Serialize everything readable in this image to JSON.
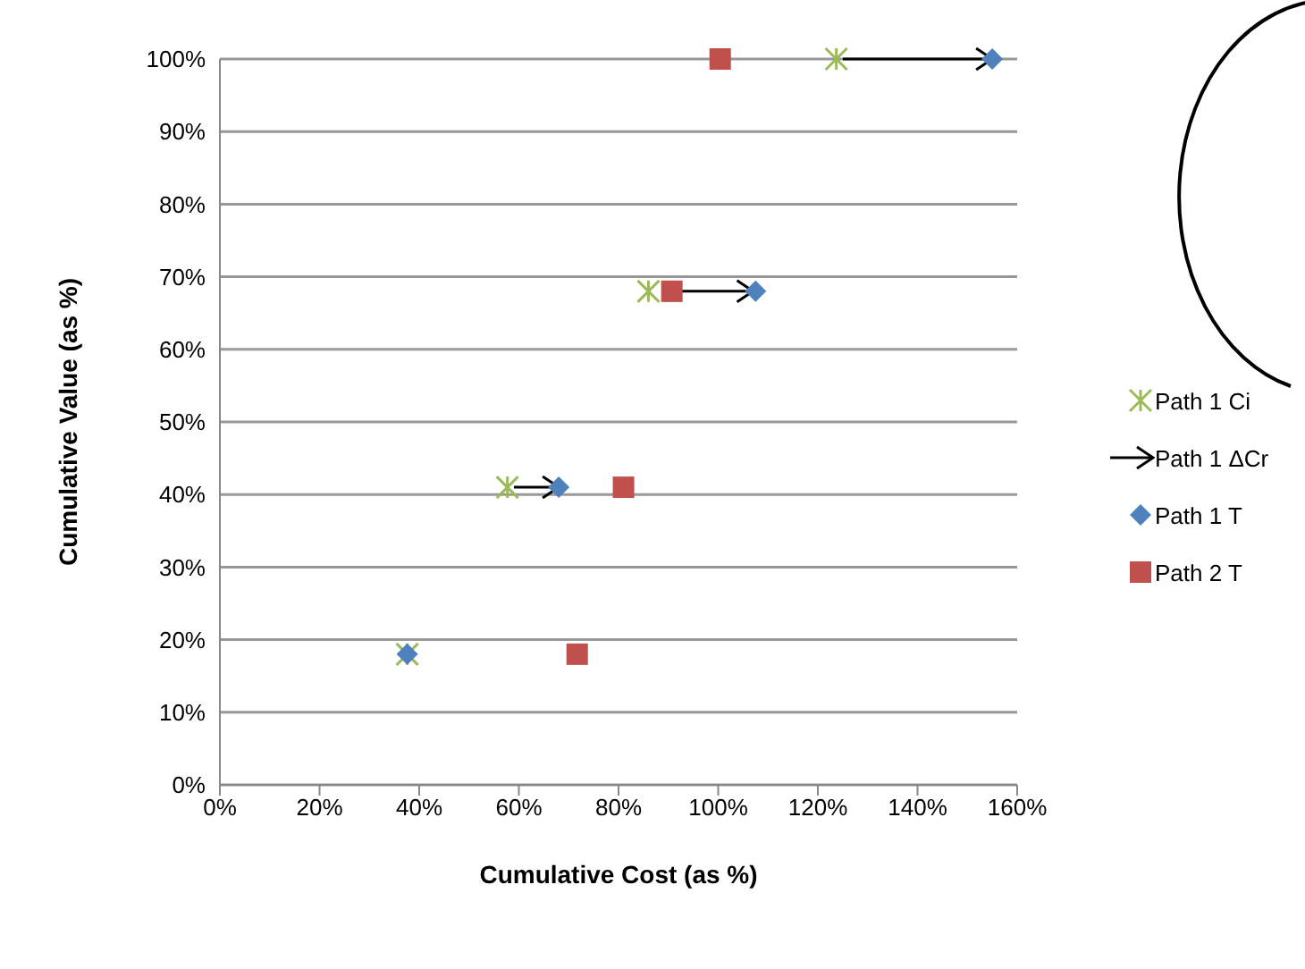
{
  "chart_data": {
    "type": "scatter",
    "xlabel": "Cumulative Cost (as %)",
    "ylabel": "Cumulative Value (as %)",
    "xlim": [
      0,
      160
    ],
    "ylim": [
      0,
      100
    ],
    "xticks": [
      {
        "value": 0,
        "label": "0%"
      },
      {
        "value": 20,
        "label": "20%"
      },
      {
        "value": 40,
        "label": "40%"
      },
      {
        "value": 60,
        "label": "60%"
      },
      {
        "value": 80,
        "label": "80%"
      },
      {
        "value": 100,
        "label": "100%"
      },
      {
        "value": 120,
        "label": "120%"
      },
      {
        "value": 140,
        "label": "140%"
      },
      {
        "value": 160,
        "label": "160%"
      }
    ],
    "yticks": [
      {
        "value": 0,
        "label": "0%"
      },
      {
        "value": 10,
        "label": "10%"
      },
      {
        "value": 20,
        "label": "20%"
      },
      {
        "value": 30,
        "label": "30%"
      },
      {
        "value": 40,
        "label": "40%"
      },
      {
        "value": 50,
        "label": "50%"
      },
      {
        "value": 60,
        "label": "60%"
      },
      {
        "value": 70,
        "label": "70%"
      },
      {
        "value": 80,
        "label": "80%"
      },
      {
        "value": 90,
        "label": "90%"
      },
      {
        "value": 100,
        "label": "100%"
      }
    ],
    "grid": "y",
    "legend": "right",
    "series": [
      {
        "name": "Path 1 Ci",
        "color": "#9bbb59",
        "marker": "cross",
        "x": [
          37.6,
          57.7,
          86,
          123.7
        ],
        "values": [
          18,
          41,
          68,
          100
        ]
      },
      {
        "name": "Path 1 ΔCr",
        "type": "line",
        "color": "#000000",
        "marker": "none",
        "x": [
          59,
          68,
          null,
          89,
          107,
          null,
          125,
          155
        ],
        "values": [
          41,
          41,
          null,
          68,
          68,
          null,
          100,
          100
        ]
      },
      {
        "name": "Path 1 T",
        "color": "#4f81bd",
        "marker": "diamond",
        "x": [
          37.6,
          68,
          107.5,
          155
        ],
        "values": [
          18,
          41,
          68,
          100
        ]
      },
      {
        "name": "Path 2 T",
        "color": "#c0504d",
        "marker": "square",
        "x": [
          71.7,
          81,
          90.7,
          100.4
        ],
        "values": [
          18,
          41,
          68,
          100
        ]
      }
    ]
  }
}
